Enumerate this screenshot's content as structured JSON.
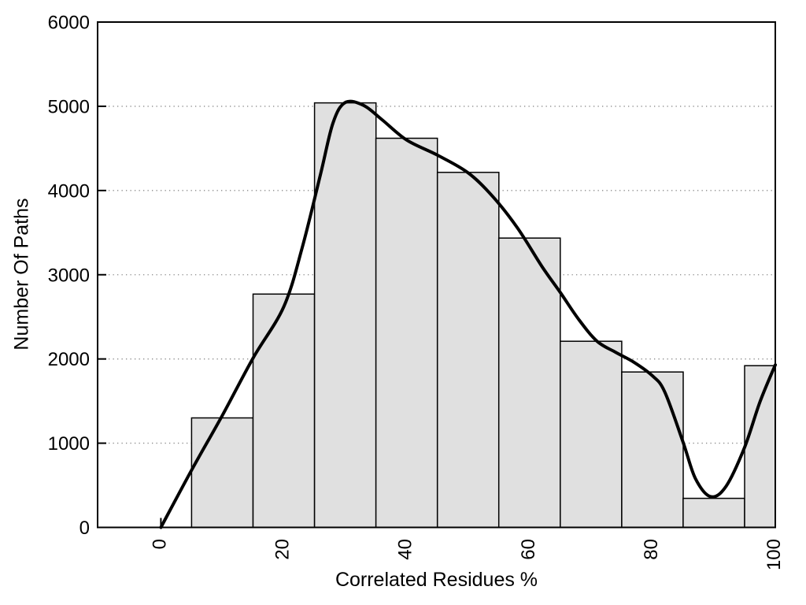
{
  "figure": {
    "background": "#ffffff"
  },
  "chart_data": {
    "type": "bar",
    "subtype": "histogram_with_smooth_fit_curve",
    "title": "",
    "xlabel": "Correlated Residues %",
    "ylabel": "Number Of Paths",
    "xlim": [
      -10.3,
      100
    ],
    "ylim": [
      0,
      6000
    ],
    "x_ticks": [
      0,
      20,
      40,
      60,
      80,
      100
    ],
    "y_ticks": [
      0,
      1000,
      2000,
      3000,
      4000,
      5000,
      6000
    ],
    "x_tick_labels_rotated_deg": -90,
    "grid": {
      "horizontal": true,
      "vertical": false,
      "style": "dotted",
      "color": "#8a8a8a"
    },
    "legend": "none",
    "bars": {
      "bin_edges": [
        5,
        15,
        25,
        35,
        45,
        55,
        65,
        75,
        85,
        95,
        100
      ],
      "counts": [
        1300,
        2770,
        5040,
        4620,
        4215,
        3435,
        2210,
        1845,
        345,
        1920
      ],
      "fill": "#e0e0e0",
      "stroke": "#000000"
    },
    "curve": {
      "color": "#000000",
      "width": 4,
      "points": [
        [
          0,
          0
        ],
        [
          5,
          680
        ],
        [
          10,
          1330
        ],
        [
          15,
          2010
        ],
        [
          20,
          2620
        ],
        [
          23,
          3320
        ],
        [
          26,
          4200
        ],
        [
          28,
          4800
        ],
        [
          30,
          5045
        ],
        [
          33,
          5010
        ],
        [
          36,
          4840
        ],
        [
          40,
          4600
        ],
        [
          45,
          4420
        ],
        [
          50,
          4210
        ],
        [
          54,
          3930
        ],
        [
          58,
          3560
        ],
        [
          62,
          3100
        ],
        [
          65,
          2790
        ],
        [
          68,
          2470
        ],
        [
          71,
          2210
        ],
        [
          74,
          2080
        ],
        [
          77,
          1960
        ],
        [
          80,
          1800
        ],
        [
          82,
          1610
        ],
        [
          85,
          1010
        ],
        [
          87,
          580
        ],
        [
          89.5,
          365
        ],
        [
          92,
          490
        ],
        [
          95,
          950
        ],
        [
          97.5,
          1490
        ],
        [
          100,
          1930
        ]
      ]
    },
    "axis_color": "#000000",
    "tick_label_color": "#000000"
  }
}
